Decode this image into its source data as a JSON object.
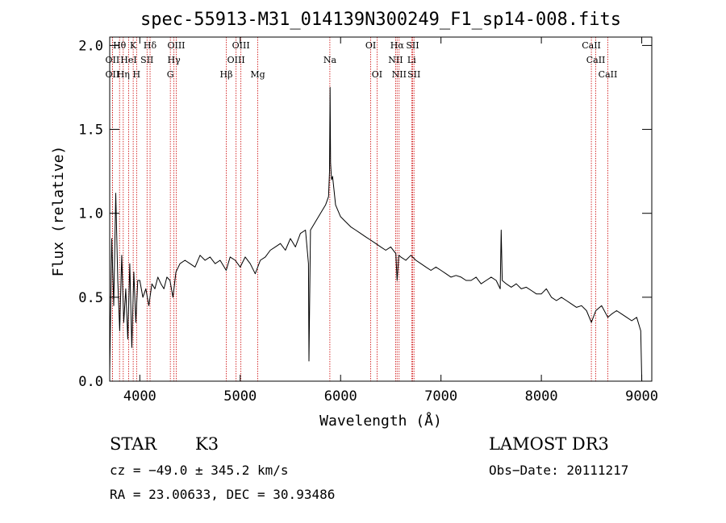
{
  "chart_data": {
    "type": "line",
    "title": "spec-55913-M31_014139N300249_F1_sp14-008.fits",
    "xlabel": "Wavelength (Å)",
    "ylabel": "Flux (relative)",
    "xlim": [
      3700,
      9100
    ],
    "ylim": [
      0.0,
      2.05
    ],
    "x_ticks": [
      4000,
      5000,
      6000,
      7000,
      8000,
      9000
    ],
    "x_tick_labels": [
      "4000",
      "5000",
      "6000",
      "7000",
      "8000",
      "9000"
    ],
    "y_ticks": [
      0.0,
      0.5,
      1.0,
      1.5,
      2.0
    ],
    "y_tick_labels": [
      "0.0",
      "0.5",
      "1.0",
      "1.5",
      "2.0"
    ],
    "series": [
      {
        "name": "spectrum",
        "color": "#000000",
        "x": [
          3700,
          3720,
          3740,
          3760,
          3780,
          3800,
          3820,
          3840,
          3860,
          3880,
          3900,
          3920,
          3940,
          3960,
          3980,
          4000,
          4030,
          4060,
          4090,
          4120,
          4150,
          4180,
          4210,
          4240,
          4270,
          4300,
          4330,
          4360,
          4400,
          4450,
          4500,
          4550,
          4600,
          4650,
          4700,
          4750,
          4800,
          4860,
          4900,
          4950,
          5000,
          5050,
          5100,
          5150,
          5200,
          5250,
          5300,
          5350,
          5400,
          5450,
          5500,
          5550,
          5600,
          5650,
          5680,
          5685,
          5700,
          5750,
          5800,
          5850,
          5880,
          5890,
          5895,
          5900,
          5910,
          5920,
          5950,
          6000,
          6050,
          6100,
          6150,
          6200,
          6250,
          6300,
          6350,
          6400,
          6450,
          6500,
          6550,
          6563,
          6580,
          6600,
          6650,
          6700,
          6750,
          6800,
          6850,
          6900,
          6950,
          7000,
          7050,
          7100,
          7150,
          7200,
          7250,
          7300,
          7350,
          7400,
          7450,
          7500,
          7550,
          7590,
          7600,
          7610,
          7650,
          7700,
          7750,
          7800,
          7850,
          7900,
          7950,
          8000,
          8050,
          8100,
          8150,
          8200,
          8250,
          8300,
          8350,
          8400,
          8450,
          8498,
          8542,
          8600,
          8662,
          8700,
          8750,
          8800,
          8850,
          8900,
          8950,
          8990,
          9000
        ],
        "y": [
          0.05,
          0.85,
          0.45,
          1.12,
          0.6,
          0.3,
          0.75,
          0.35,
          0.55,
          0.25,
          0.7,
          0.2,
          0.65,
          0.35,
          0.6,
          0.6,
          0.5,
          0.55,
          0.45,
          0.58,
          0.55,
          0.62,
          0.58,
          0.55,
          0.62,
          0.6,
          0.5,
          0.65,
          0.7,
          0.72,
          0.7,
          0.68,
          0.75,
          0.72,
          0.74,
          0.7,
          0.72,
          0.66,
          0.74,
          0.72,
          0.68,
          0.74,
          0.7,
          0.64,
          0.72,
          0.74,
          0.78,
          0.8,
          0.82,
          0.78,
          0.85,
          0.8,
          0.88,
          0.9,
          0.7,
          0.12,
          0.9,
          0.95,
          1.0,
          1.05,
          1.1,
          1.25,
          1.75,
          1.3,
          1.2,
          1.22,
          1.05,
          0.98,
          0.95,
          0.92,
          0.9,
          0.88,
          0.86,
          0.84,
          0.82,
          0.8,
          0.78,
          0.8,
          0.76,
          0.6,
          0.75,
          0.74,
          0.72,
          0.75,
          0.72,
          0.7,
          0.68,
          0.66,
          0.68,
          0.66,
          0.64,
          0.62,
          0.63,
          0.62,
          0.6,
          0.6,
          0.62,
          0.58,
          0.6,
          0.62,
          0.6,
          0.55,
          0.9,
          0.6,
          0.58,
          0.56,
          0.58,
          0.55,
          0.56,
          0.54,
          0.52,
          0.52,
          0.55,
          0.5,
          0.48,
          0.5,
          0.48,
          0.46,
          0.44,
          0.45,
          0.42,
          0.35,
          0.42,
          0.45,
          0.38,
          0.4,
          0.42,
          0.4,
          0.38,
          0.36,
          0.38,
          0.3,
          0.0
        ]
      }
    ],
    "lines": [
      {
        "label": "Hθ",
        "x": 3798,
        "row": 1
      },
      {
        "label": "OII",
        "x": 3727,
        "row": 2
      },
      {
        "label": "OII",
        "x": 3727,
        "row": 3
      },
      {
        "label": "K",
        "x": 3934,
        "row": 1
      },
      {
        "label": "HeI",
        "x": 3889,
        "row": 2
      },
      {
        "label": "Hη",
        "x": 3835,
        "row": 3
      },
      {
        "label": "SII",
        "x": 4072,
        "row": 2
      },
      {
        "label": "H",
        "x": 3968,
        "row": 3
      },
      {
        "label": "Hδ",
        "x": 4102,
        "row": 1
      },
      {
        "label": "OIII",
        "x": 4363,
        "row": 1
      },
      {
        "label": "Hγ",
        "x": 4340,
        "row": 2
      },
      {
        "label": "G",
        "x": 4304,
        "row": 3
      },
      {
        "label": "OIII",
        "x": 5007,
        "row": 1
      },
      {
        "label": "OIII",
        "x": 4959,
        "row": 2
      },
      {
        "label": "Hβ",
        "x": 4861,
        "row": 3
      },
      {
        "label": "Mg",
        "x": 5175,
        "row": 3
      },
      {
        "label": "Na",
        "x": 5893,
        "row": 2
      },
      {
        "label": "OI",
        "x": 6300,
        "row": 1
      },
      {
        "label": "OI",
        "x": 6363,
        "row": 3
      },
      {
        "label": "Hα",
        "x": 6563,
        "row": 1
      },
      {
        "label": "SII",
        "x": 6717,
        "row": 1
      },
      {
        "label": "NII",
        "x": 6548,
        "row": 2
      },
      {
        "label": "Li",
        "x": 6708,
        "row": 2
      },
      {
        "label": "NII",
        "x": 6583,
        "row": 3
      },
      {
        "label": "SII",
        "x": 6731,
        "row": 3
      },
      {
        "label": "CaII",
        "x": 8498,
        "row": 1
      },
      {
        "label": "CaII",
        "x": 8542,
        "row": 2
      },
      {
        "label": "CaII",
        "x": 8662,
        "row": 3
      }
    ],
    "line_color": "#cc0000"
  },
  "info": {
    "class": "STAR",
    "subclass": "K3",
    "survey": "LAMOST DR3",
    "cz": "cz = −49.0 ± 345.2 km/s",
    "obs_date": "Obs−Date: 20111217",
    "coords": "RA =  23.00633, DEC =  30.93486"
  }
}
